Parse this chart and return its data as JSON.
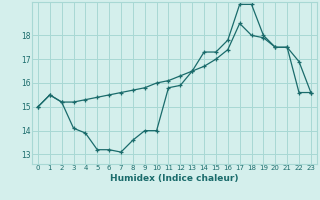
{
  "xlabel": "Humidex (Indice chaleur)",
  "bg_color": "#d4efec",
  "grid_color": "#a8d8d4",
  "line_color": "#1a6b6b",
  "xlim": [
    -0.5,
    23.5
  ],
  "ylim": [
    12.6,
    19.4
  ],
  "yticks": [
    13,
    14,
    15,
    16,
    17,
    18
  ],
  "xticks": [
    0,
    1,
    2,
    3,
    4,
    5,
    6,
    7,
    8,
    9,
    10,
    11,
    12,
    13,
    14,
    15,
    16,
    17,
    18,
    19,
    20,
    21,
    22,
    23
  ],
  "series1_x": [
    0,
    1,
    2,
    3,
    4,
    5,
    6,
    7,
    8,
    9,
    10,
    11,
    12,
    13,
    14,
    15,
    16,
    17,
    18,
    19,
    20,
    21,
    22,
    23
  ],
  "series1_y": [
    15.0,
    15.5,
    15.2,
    14.1,
    13.9,
    13.2,
    13.2,
    13.1,
    13.6,
    14.0,
    14.0,
    15.8,
    15.9,
    16.5,
    17.3,
    17.3,
    17.8,
    19.3,
    19.3,
    18.0,
    17.5,
    17.5,
    16.9,
    15.6
  ],
  "series2_x": [
    0,
    1,
    2,
    3,
    4,
    5,
    6,
    7,
    8,
    9,
    10,
    11,
    12,
    13,
    14,
    15,
    16,
    17,
    18,
    19,
    20,
    21,
    22,
    23
  ],
  "series2_y": [
    15.0,
    15.5,
    15.2,
    15.2,
    15.3,
    15.4,
    15.5,
    15.6,
    15.7,
    15.8,
    16.0,
    16.1,
    16.3,
    16.5,
    16.7,
    17.0,
    17.4,
    18.5,
    18.0,
    17.9,
    17.5,
    17.5,
    15.6,
    15.6
  ]
}
